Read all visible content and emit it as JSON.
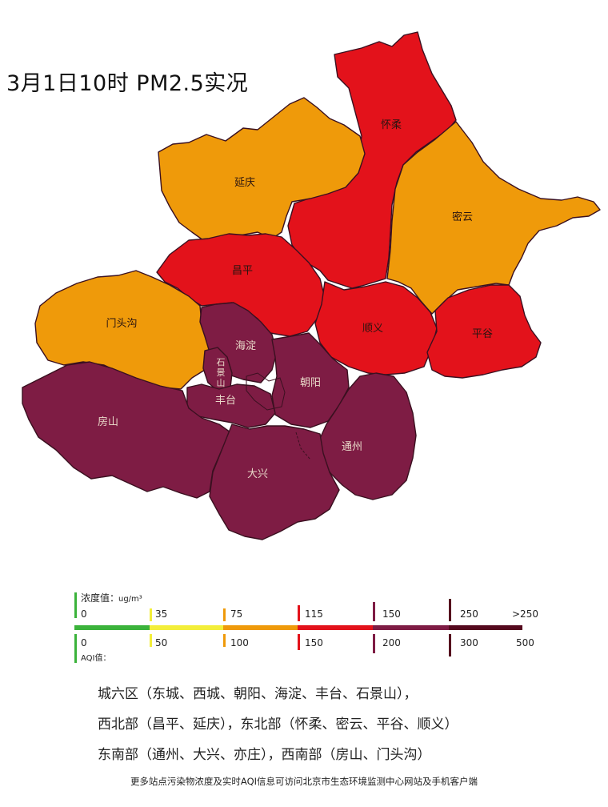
{
  "title": "3月1日10时 PM2.5实况",
  "colors": {
    "level_green": "#3bb33b",
    "level_yellow": "#f3ee3a",
    "level_orange": "#ef9a0a",
    "level_red": "#e3121b",
    "level_purple": "#7e1c44",
    "level_maroon": "#55091e"
  },
  "districts": [
    {
      "name": "怀柔",
      "level": "red"
    },
    {
      "name": "延庆",
      "level": "orange"
    },
    {
      "name": "密云",
      "level": "orange"
    },
    {
      "name": "昌平",
      "level": "red"
    },
    {
      "name": "门头沟",
      "level": "orange"
    },
    {
      "name": "顺义",
      "level": "red"
    },
    {
      "name": "平谷",
      "level": "red"
    },
    {
      "name": "海淀",
      "level": "purple"
    },
    {
      "name": "石景山",
      "level": "purple"
    },
    {
      "name": "朝阳",
      "level": "purple"
    },
    {
      "name": "丰台",
      "level": "purple"
    },
    {
      "name": "房山",
      "level": "purple"
    },
    {
      "name": "大兴",
      "level": "purple"
    },
    {
      "name": "通州",
      "level": "purple"
    }
  ],
  "legend": {
    "concentration_label": "浓度值：",
    "concentration_unit": "ug/m³",
    "concentration_ticks": [
      "0",
      "35",
      "75",
      "115",
      "150",
      "250",
      ">250"
    ],
    "aqi_label": "AQI值：",
    "aqi_ticks": [
      "0",
      "50",
      "100",
      "150",
      "200",
      "300",
      "500"
    ]
  },
  "notes": [
    "城六区（东城、西城、朝阳、海淀、丰台、石景山），",
    "西北部（昌平、延庆），东北部（怀柔、密云、平谷、顺义）",
    "东南部（通州、大兴、亦庄），西南部（房山、门头沟）"
  ],
  "footer": "更多站点污染物浓度及实时AQI信息可访问北京市生态环境监测中心网站及手机客户端"
}
